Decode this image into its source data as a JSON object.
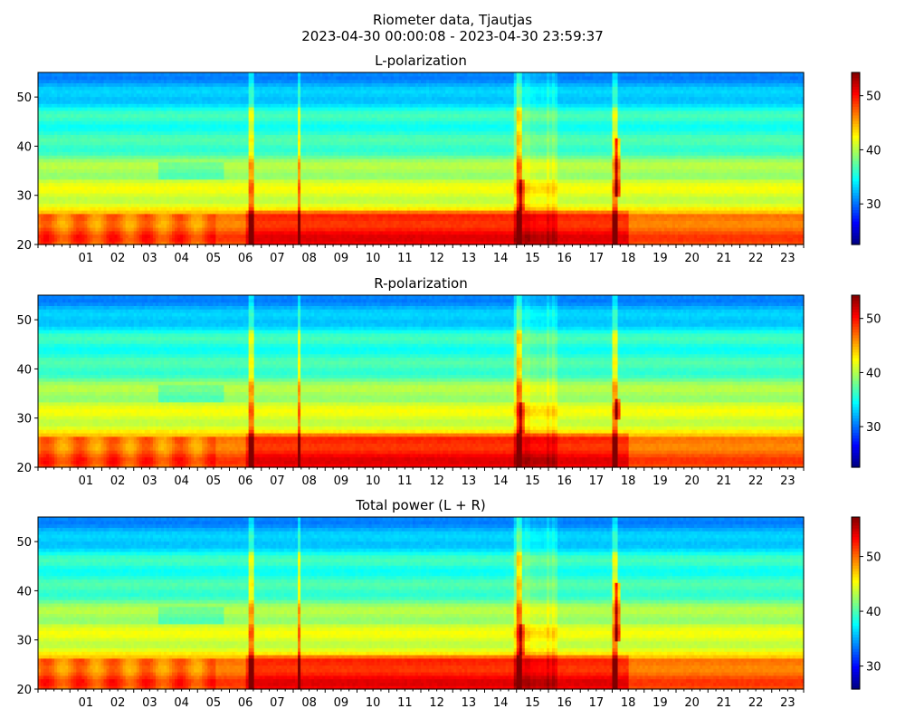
{
  "suptitle": {
    "line1": "Riometer data, Tjautjas",
    "line2": "2023-04-30 00:00:08 - 2023-04-30 23:59:37"
  },
  "colors": {
    "jet": [
      "#000080",
      "#0000ff",
      "#0080ff",
      "#00ffff",
      "#80ff80",
      "#ffff00",
      "#ff8000",
      "#ff0000",
      "#800000"
    ]
  },
  "chart_data": [
    {
      "type": "heatmap",
      "title": "L-polarization",
      "xlabel": "",
      "ylabel": "",
      "xlim": [
        0,
        24
      ],
      "ylim": [
        20,
        55
      ],
      "x_ticks": [
        "01",
        "02",
        "03",
        "04",
        "05",
        "06",
        "07",
        "08",
        "09",
        "10",
        "11",
        "12",
        "13",
        "14",
        "15",
        "16",
        "17",
        "18",
        "19",
        "20",
        "21",
        "22",
        "23"
      ],
      "y_ticks": [
        20,
        30,
        40,
        50
      ],
      "colorbar": {
        "range": [
          22.5,
          54.3
        ],
        "ticks": [
          30,
          40,
          50
        ],
        "colormap": "jet"
      },
      "features": {
        "quiet_gradient": "higher values (about 46) near y=20-26, decreasing to about 34 near y=55",
        "low_band_enhancement_hours": [
          6.5,
          18.5
        ],
        "vertical_spikes_hours": [
          6.7,
          8.2,
          15.1,
          18.1
        ],
        "active_interval_hours": [
          14.9,
          16.3
        ],
        "hot_spot_18h_y_range": [
          30,
          42
        ]
      }
    },
    {
      "type": "heatmap",
      "title": "R-polarization",
      "xlabel": "",
      "ylabel": "",
      "xlim": [
        0,
        24
      ],
      "ylim": [
        20,
        55
      ],
      "x_ticks": [
        "01",
        "02",
        "03",
        "04",
        "05",
        "06",
        "07",
        "08",
        "09",
        "10",
        "11",
        "12",
        "13",
        "14",
        "15",
        "16",
        "17",
        "18",
        "19",
        "20",
        "21",
        "22",
        "23"
      ],
      "y_ticks": [
        20,
        30,
        40,
        50
      ],
      "colorbar": {
        "range": [
          22.5,
          54.3
        ],
        "ticks": [
          30,
          40,
          50
        ],
        "colormap": "jet"
      },
      "features": {
        "quiet_gradient": "higher values (about 46) near y=20-26, decreasing to about 34 near y=55",
        "low_band_enhancement_hours": [
          6.5,
          18.5
        ],
        "vertical_spikes_hours": [
          6.7,
          8.2,
          15.1,
          18.1
        ],
        "active_interval_hours": [
          14.9,
          16.3
        ],
        "hot_spot_18h_y_range": [
          30,
          34
        ]
      }
    },
    {
      "type": "heatmap",
      "title": "Total power (L + R)",
      "xlabel": "",
      "ylabel": "",
      "xlim": [
        0,
        24
      ],
      "ylim": [
        20,
        55
      ],
      "x_ticks": [
        "01",
        "02",
        "03",
        "04",
        "05",
        "06",
        "07",
        "08",
        "09",
        "10",
        "11",
        "12",
        "13",
        "14",
        "15",
        "16",
        "17",
        "18",
        "19",
        "20",
        "21",
        "22",
        "23"
      ],
      "y_ticks": [
        20,
        30,
        40,
        50
      ],
      "colorbar": {
        "range": [
          25.8,
          57.2
        ],
        "ticks": [
          30,
          40,
          50
        ],
        "colormap": "jet"
      },
      "features": {
        "quiet_gradient": "higher values (about 49) near y=20-26, decreasing to about 37 near y=55",
        "low_band_enhancement_hours": [
          6.5,
          18.5
        ],
        "vertical_spikes_hours": [
          6.7,
          8.2,
          15.1,
          18.1
        ],
        "active_interval_hours": [
          14.9,
          16.3
        ],
        "hot_spot_18h_y_range": [
          30,
          42
        ]
      }
    }
  ]
}
